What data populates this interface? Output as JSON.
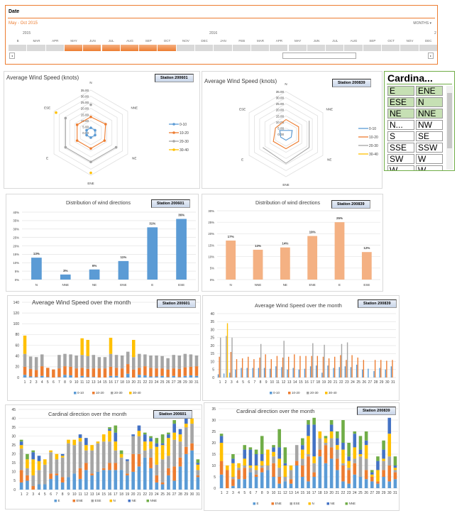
{
  "timeline": {
    "title": "Date",
    "range": "May - Oct 2015",
    "level": "MONTHS",
    "level_icon": "chevron-down-icon",
    "years": [
      "2015",
      "2016",
      "2"
    ],
    "months": [
      "B",
      "MAR",
      "APR",
      "MAY",
      "JUN",
      "JUL",
      "AUG",
      "SEP",
      "OCT",
      "NOV",
      "DEC",
      "JAN",
      "FEB",
      "MAR",
      "APR",
      "MAY",
      "JUN",
      "JUL",
      "AUG",
      "SEP",
      "OCT",
      "NOV",
      "DEC"
    ],
    "selected": [
      "MAY",
      "JUN",
      "JUL",
      "AUG",
      "SEP",
      "OCT"
    ],
    "scroll_left": "◂",
    "scroll_right": "▸"
  },
  "slicer": {
    "title": "Cardina...",
    "items": [
      {
        "label": "E",
        "selected": true
      },
      {
        "label": "ENE",
        "selected": true
      },
      {
        "label": "ESE",
        "selected": true
      },
      {
        "label": "N",
        "selected": true
      },
      {
        "label": "NE",
        "selected": true
      },
      {
        "label": "NNE",
        "selected": true
      },
      {
        "label": "N...",
        "selected": false
      },
      {
        "label": "NW",
        "selected": false
      },
      {
        "label": "S",
        "selected": false
      },
      {
        "label": "SE",
        "selected": false
      },
      {
        "label": "SSE",
        "selected": false
      },
      {
        "label": "SSW",
        "selected": false
      },
      {
        "label": "SW",
        "selected": false
      },
      {
        "label": "W",
        "selected": false
      },
      {
        "label": "W...",
        "selected": false
      },
      {
        "label": "W...",
        "selected": false
      }
    ]
  },
  "colors": {
    "E": "#5b9bd5",
    "ENE": "#ed7d31",
    "ESE": "#a5a5a5",
    "N": "#ffc000",
    "NE": "#4472c4",
    "NNE": "#70ad47",
    "s0_10": "#5b9bd5",
    "s10_20": "#ed7d31",
    "s20_30": "#a5a5a5",
    "s30_40": "#ffc000",
    "dist1": "#5b9bd5",
    "dist2": "#f4b183"
  },
  "chart_data": [
    {
      "id": "radar1",
      "type": "radar",
      "title": "Average Wind Speed (knots)",
      "station": "Station 200601",
      "categories": [
        "N",
        "NNE",
        "NE",
        "ENE",
        "E",
        "ESE"
      ],
      "ylim": [
        0,
        35
      ],
      "ticks": [
        "0.00",
        "5.00",
        "10.00",
        "15.00",
        "20.00",
        "25.00",
        "30.00",
        "35.00"
      ],
      "markers": true,
      "series": [
        {
          "name": "0-10",
          "values": [
            4,
            4,
            4,
            4,
            4,
            4
          ]
        },
        {
          "name": "10-20",
          "values": [
            13,
            14,
            13,
            13,
            13,
            13
          ]
        },
        {
          "name": "20-30",
          "values": [
            23,
            null,
            24,
            24,
            24,
            24
          ]
        },
        {
          "name": "30-40",
          "values": [
            null,
            null,
            null,
            33,
            null,
            33
          ]
        }
      ]
    },
    {
      "id": "radar2",
      "type": "radar",
      "title": "Average Wind Speed (knots)",
      "station": "Station 200839",
      "categories": [
        "N",
        "NNE",
        "NE",
        "ENE",
        "E",
        "ESE"
      ],
      "ylim": [
        0,
        35
      ],
      "ticks": [
        "0.00",
        "5.00",
        "10.00",
        "15.00",
        "20.00",
        "25.00",
        "30.00",
        "35.00"
      ],
      "markers": false,
      "series": [
        {
          "name": "0-10",
          "values": [
            3,
            6,
            5,
            5,
            5,
            6
          ]
        },
        {
          "name": "10-20",
          "values": [
            12,
            12,
            12,
            12,
            12,
            10
          ]
        },
        {
          "name": "20-30",
          "values": [
            null,
            22,
            22,
            24,
            22,
            null
          ]
        },
        {
          "name": "30-40",
          "values": [
            null,
            null,
            null,
            null,
            null,
            null
          ]
        }
      ]
    },
    {
      "id": "dist1",
      "type": "bar",
      "title": "Distribution of wind directions",
      "station": "Station 200601",
      "categories": [
        "N",
        "NNE",
        "NE",
        "ENE",
        "E",
        "ESE"
      ],
      "values": [
        13,
        3,
        6,
        11,
        31,
        36
      ],
      "labels": [
        "13%",
        "3%",
        "6%",
        "11%",
        "31%",
        "36%"
      ],
      "ylim": [
        0,
        40
      ],
      "ystep": 5,
      "unit": "%"
    },
    {
      "id": "dist2",
      "type": "bar",
      "title": "Distribution of wind directions",
      "station": "Station 200839",
      "categories": [
        "N",
        "NNE",
        "NE",
        "ENE",
        "E",
        "ESE"
      ],
      "values": [
        17,
        13,
        14,
        19,
        25,
        12
      ],
      "labels": [
        "17%",
        "13%",
        "14%",
        "19%",
        "25%",
        "12%"
      ],
      "ylim": [
        0,
        30
      ],
      "ystep": 5,
      "unit": "%"
    },
    {
      "id": "month1",
      "type": "bar",
      "stacked": true,
      "title": "Average Wind Speed over the month",
      "station": "Station 200601",
      "ylim": [
        0,
        140
      ],
      "ystep": 20,
      "legend": "bottom",
      "series": [
        {
          "name": "0-10",
          "values": [
            5,
            2,
            1,
            3,
            1,
            0,
            1,
            5,
            4,
            0,
            3,
            1,
            1,
            0,
            0,
            3,
            3,
            0,
            7,
            0,
            5,
            4,
            2,
            2,
            3,
            1,
            3,
            1,
            3,
            4,
            3
          ]
        },
        {
          "name": "10-20",
          "values": [
            15,
            14,
            13,
            18,
            17,
            15,
            16,
            16,
            16,
            17,
            15,
            15,
            16,
            17,
            17,
            17,
            15,
            17,
            18,
            15,
            13,
            17,
            16,
            15,
            14,
            14,
            14,
            15,
            16,
            16,
            18
          ]
        },
        {
          "name": "20-30",
          "values": [
            24,
            23,
            24,
            22,
            0,
            0,
            25,
            23,
            23,
            24,
            24,
            24,
            25,
            21,
            21,
            24,
            24,
            24,
            23,
            23,
            26,
            22,
            23,
            24,
            23,
            21,
            25,
            25,
            25,
            23,
            20
          ]
        },
        {
          "name": "30-40",
          "values": [
            34,
            0,
            0,
            0,
            0,
            0,
            0,
            0,
            0,
            0,
            31,
            30,
            0,
            0,
            0,
            30,
            0,
            0,
            0,
            32,
            0,
            0,
            0,
            0,
            0,
            0,
            0,
            0,
            0,
            0,
            0
          ]
        }
      ]
    },
    {
      "id": "month2",
      "type": "bar",
      "stacked": false,
      "title": "Average Wind Speed over the month",
      "station": "Station 200839",
      "ylim": [
        0,
        40
      ],
      "ystep": 5,
      "legend": "bottom",
      "series": [
        {
          "name": "0-10",
          "values": [
            2,
            2.5,
            3,
            5,
            6,
            6,
            6,
            6,
            6,
            5.5,
            7,
            6.5,
            5,
            6,
            5,
            5.5,
            7,
            7.5,
            3,
            7.5,
            6,
            6.5,
            7,
            6.5,
            8,
            5,
            5.5,
            4,
            6,
            5,
            7
          ]
        },
        {
          "name": "10-20",
          "values": [
            13,
            0,
            16,
            11.5,
            12,
            13,
            11.5,
            12.5,
            14.5,
            11.5,
            13.5,
            12.5,
            13,
            14.5,
            13.5,
            13.5,
            13.5,
            13.5,
            13,
            12,
            13,
            14,
            11,
            14,
            12.5,
            11,
            0,
            11,
            11,
            10.5,
            11
          ]
        },
        {
          "name": "20-30",
          "values": [
            25,
            26,
            25,
            0,
            0,
            0,
            0,
            21,
            0,
            0,
            0,
            23,
            0,
            0,
            0,
            0,
            21.5,
            0,
            20.5,
            0,
            0,
            21,
            22,
            0,
            0,
            0,
            0,
            0,
            0,
            0,
            0
          ]
        },
        {
          "name": "30-40",
          "values": [
            0,
            34,
            0,
            0,
            0,
            0,
            0,
            0,
            0,
            0,
            0,
            0,
            0,
            0,
            0,
            0,
            0,
            0,
            0,
            0,
            0,
            0,
            0,
            0,
            0,
            0,
            0,
            0,
            0,
            0,
            0
          ]
        }
      ]
    },
    {
      "id": "card1",
      "type": "bar",
      "stacked": true,
      "title": "Cardinal direction over the month",
      "station": "Station 200601",
      "ylim": [
        0,
        45
      ],
      "ystep": 5,
      "legend": "bottom",
      "series": [
        {
          "name": "E",
          "values": [
            4,
            5,
            0,
            3,
            3,
            6,
            8,
            4,
            7,
            9,
            6,
            11,
            8,
            10,
            11,
            11,
            11,
            11,
            8,
            10,
            13,
            18,
            12,
            4,
            3,
            8,
            5,
            13,
            20,
            22,
            7
          ]
        },
        {
          "name": "ENE",
          "values": [
            7,
            3,
            2,
            0,
            0,
            3,
            1,
            3,
            0,
            0,
            6,
            4,
            1,
            0,
            1,
            4,
            4,
            0,
            1,
            10,
            7,
            0,
            6,
            4,
            1,
            4,
            8,
            5,
            4,
            4,
            1
          ]
        },
        {
          "name": "ESE",
          "values": [
            12,
            4,
            6,
            8,
            11,
            12,
            8,
            11,
            19,
            16,
            15,
            7,
            13,
            16,
            15,
            12,
            7,
            7,
            7,
            10,
            10,
            4,
            5,
            6,
            13,
            7,
            15,
            9,
            11,
            11,
            3
          ]
        },
        {
          "name": "N",
          "values": [
            2,
            5,
            9,
            5,
            3,
            1,
            3,
            1,
            2,
            3,
            2,
            3,
            3,
            1,
            4,
            6,
            5,
            2,
            0,
            0,
            3,
            5,
            4,
            10,
            8,
            10,
            4,
            4,
            2,
            3,
            3
          ]
        },
        {
          "name": "NE",
          "values": [
            2,
            0,
            4,
            3,
            0,
            0,
            0,
            1,
            0,
            0,
            2,
            4,
            0,
            0,
            0,
            1,
            5,
            0,
            1,
            1,
            3,
            4,
            2,
            2,
            1,
            2,
            5,
            3,
            3,
            0,
            1
          ]
        },
        {
          "name": "NNE",
          "values": [
            1,
            3,
            1,
            0,
            0,
            0,
            0,
            0,
            0,
            0,
            0,
            0,
            0,
            0,
            0,
            1,
            4,
            2,
            0,
            0,
            0,
            1,
            1,
            3,
            5,
            1,
            2,
            0,
            0,
            0,
            2
          ]
        }
      ]
    },
    {
      "id": "card2",
      "type": "bar",
      "stacked": true,
      "title": "Cardinal direction over the month",
      "station": "Station 200839",
      "ylim": [
        0,
        35
      ],
      "ystep": 5,
      "legend": "bottom",
      "series": [
        {
          "name": "E",
          "values": [
            6,
            0,
            1,
            4,
            4,
            7,
            5,
            7,
            8,
            5,
            2,
            3,
            2,
            10,
            5,
            3,
            5,
            14,
            11,
            13,
            8,
            3,
            2,
            6,
            5,
            4,
            3,
            2,
            5,
            3,
            4
          ]
        },
        {
          "name": "ENE",
          "values": [
            6,
            8,
            3,
            4,
            5,
            0,
            1,
            2,
            0,
            6,
            3,
            0,
            2,
            2,
            5,
            11,
            2,
            3,
            8,
            5,
            5,
            7,
            6,
            5,
            0,
            4,
            2,
            1,
            3,
            7,
            3
          ]
        },
        {
          "name": "ESE",
          "values": [
            0,
            0,
            1,
            1,
            1,
            2,
            2,
            1,
            2,
            3,
            4,
            2,
            4,
            7,
            3,
            1,
            4,
            5,
            1,
            4,
            4,
            1,
            1,
            2,
            9,
            5,
            0,
            0,
            4,
            4,
            1
          ]
        },
        {
          "name": "N",
          "values": [
            8,
            2,
            6,
            2,
            3,
            1,
            2,
            2,
            7,
            2,
            4,
            5,
            2,
            0,
            4,
            8,
            3,
            3,
            2,
            3,
            2,
            6,
            3,
            5,
            1,
            6,
            1,
            5,
            1,
            10,
            1
          ]
        },
        {
          "name": "NE",
          "values": [
            3,
            0,
            2,
            0,
            4,
            7,
            5,
            3,
            0,
            2,
            5,
            1,
            0,
            0,
            2,
            5,
            14,
            0,
            0,
            3,
            3,
            3,
            2,
            6,
            2,
            2,
            1,
            4,
            4,
            7,
            1
          ]
        },
        {
          "name": "NNE",
          "values": [
            1,
            0,
            2,
            0,
            2,
            1,
            2,
            8,
            0,
            1,
            8,
            7,
            0,
            0,
            3,
            2,
            3,
            0,
            1,
            2,
            3,
            10,
            6,
            1,
            6,
            4,
            1,
            2,
            4,
            0,
            4
          ]
        }
      ]
    }
  ]
}
